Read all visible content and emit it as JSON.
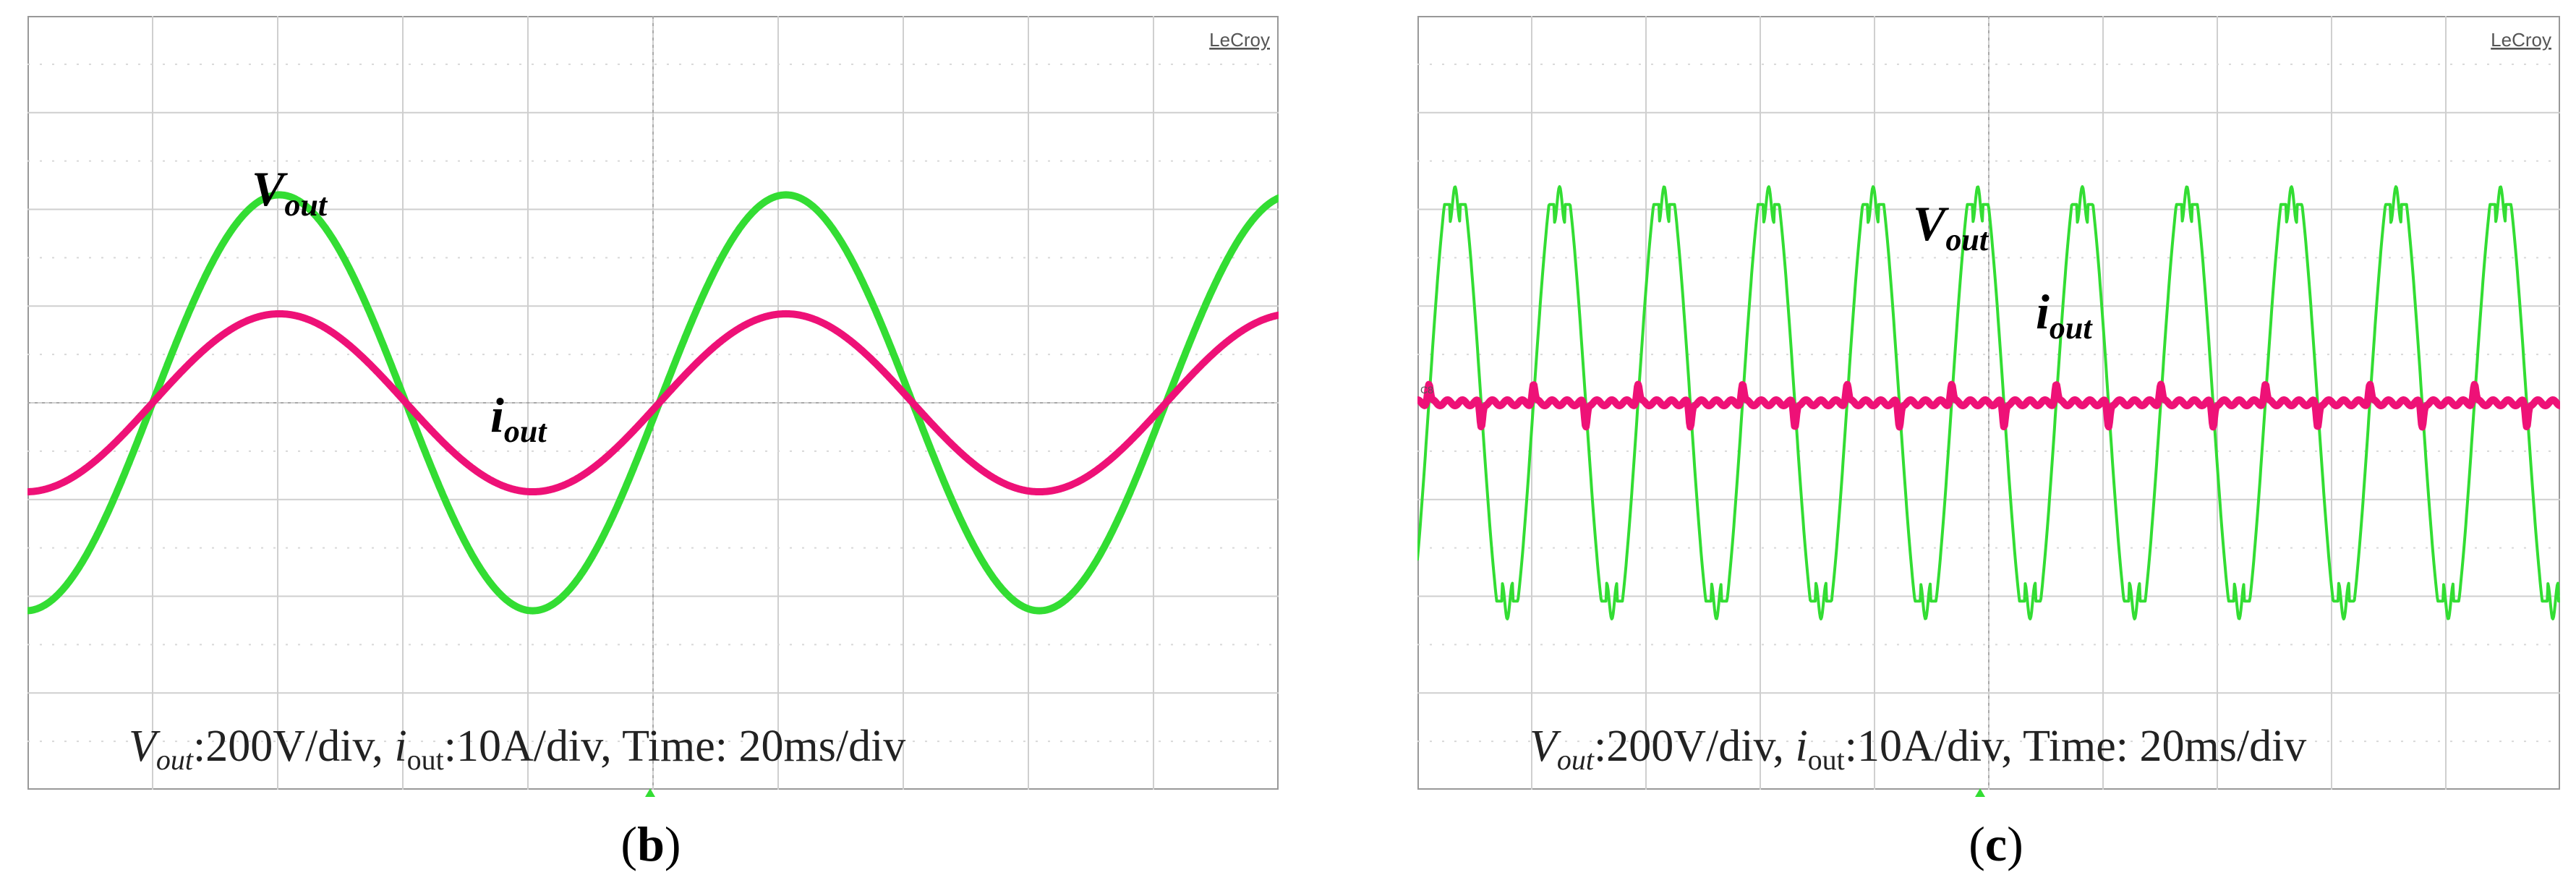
{
  "panels": [
    {
      "id": "b",
      "caption_letter": "b",
      "brand": "LeCroy",
      "ch_marker": "",
      "labels": {
        "v_main": "V",
        "v_sub": "out",
        "i_main": "i",
        "i_sub": "out"
      },
      "scale_text": {
        "v_main": "V",
        "v_sub": "out",
        "v_rest": ":200V/div, ",
        "i_main": "i",
        "i_sub": "out",
        "i_rest": ":10A/div, Time: 20ms/div"
      }
    },
    {
      "id": "c",
      "caption_letter": "c",
      "brand": "LeCroy",
      "ch_marker": "C8",
      "labels": {
        "v_main": "V",
        "v_sub": "out",
        "i_main": "i",
        "i_sub": "out"
      },
      "scale_text": {
        "v_main": "V",
        "v_sub": "out",
        "v_rest": ":200V/div, ",
        "i_main": "i",
        "i_sub": "out",
        "i_rest": ":10A/div, Time: 20ms/div"
      }
    }
  ],
  "chart_data": [
    {
      "type": "line",
      "panel": "b",
      "grid": {
        "h_divisions": 10,
        "v_divisions": 8
      },
      "x_unit_per_div": "20ms",
      "series": [
        {
          "name": "Vout",
          "color": "#33dd33",
          "shape": "sine",
          "amplitude_div": 2.15,
          "period_div": 4.05,
          "phase_zero_div": 1.0
        },
        {
          "name": "iout",
          "color": "#ee1177",
          "shape": "sine",
          "amplitude_div": 0.92,
          "period_div": 4.05,
          "phase_zero_div": 1.0
        }
      ]
    },
    {
      "type": "line",
      "panel": "c",
      "grid": {
        "h_divisions": 10,
        "v_divisions": 8
      },
      "x_unit_per_div": "20ms",
      "series": [
        {
          "name": "Vout",
          "color": "#33dd33",
          "shape": "clipped-sine",
          "amplitude_div": 2.05,
          "period_div": 0.915,
          "phase_zero_div": 0.1
        },
        {
          "name": "iout",
          "color": "#ee1177",
          "shape": "spikes",
          "amplitude_div": 0.5,
          "period_div": 0.915,
          "phase_zero_div": 0.1
        }
      ]
    }
  ]
}
